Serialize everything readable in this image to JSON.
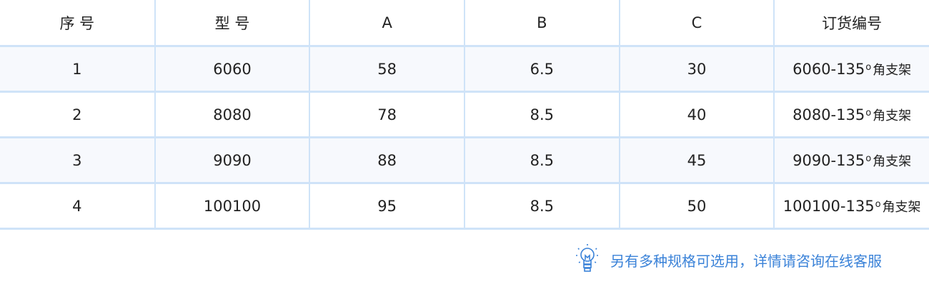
{
  "table": {
    "headers": [
      "序 号",
      "型 号",
      "A",
      "B",
      "C",
      "订货编号"
    ],
    "rows": [
      {
        "no": "1",
        "model": "6060",
        "a": "58",
        "b": "6.5",
        "c": "30",
        "order_code": "6060-135",
        "order_degree": "o",
        "order_suffix": "角支架"
      },
      {
        "no": "2",
        "model": "8080",
        "a": "78",
        "b": "8.5",
        "c": "40",
        "order_code": "8080-135",
        "order_degree": "o",
        "order_suffix": "角支架"
      },
      {
        "no": "3",
        "model": "9090",
        "a": "88",
        "b": "8.5",
        "c": "45",
        "order_code": "9090-135",
        "order_degree": "o",
        "order_suffix": "角支架"
      },
      {
        "no": "4",
        "model": "100100",
        "a": "95",
        "b": "8.5",
        "c": "50",
        "order_code": "100100-135",
        "order_degree": "o",
        "order_suffix": "角支架"
      }
    ]
  },
  "note": {
    "icon": "lightbulb-icon",
    "text": "另有多种规格可选用，详情请咨询在线客服",
    "color": "#3a82d8"
  }
}
